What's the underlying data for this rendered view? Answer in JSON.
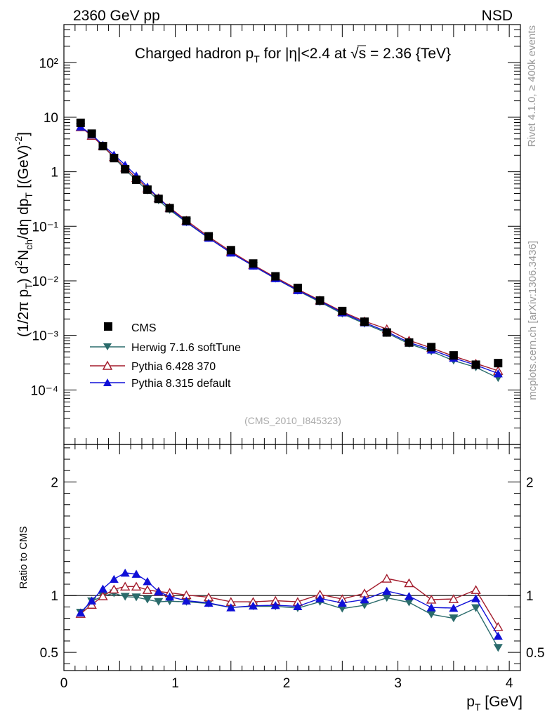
{
  "header": {
    "left_label": "2360 GeV pp",
    "right_label": "NSD"
  },
  "side_labels": {
    "rivet": "Rivet 4.1.0, ≥ 400k events",
    "mcplots": "mcplots.cern.ch [arXiv:1306.3436]"
  },
  "chart_data": [
    {
      "type": "scatter",
      "panel": "main",
      "title_parts": [
        "Charged hadron p",
        "T",
        " for |η|<2.4 at √s = 2.36 {TeV}"
      ],
      "watermark": "(CMS_2010_I845323)",
      "ylabel_parts": [
        "(1/2π p",
        "T",
        ") d",
        "2",
        "N",
        "ch",
        "/dη dp",
        "T",
        " [(GeV)",
        "-2",
        "]"
      ],
      "yscale": "log",
      "ylim": [
        1e-05,
        500
      ],
      "xlim": [
        0,
        4.1
      ],
      "ytick_labels": [
        "10⁻⁴",
        "10⁻³",
        "10⁻²",
        "10⁻¹",
        "1",
        "10",
        "10²"
      ],
      "x": [
        0.15,
        0.25,
        0.35,
        0.45,
        0.55,
        0.65,
        0.75,
        0.85,
        0.95,
        1.1,
        1.3,
        1.5,
        1.7,
        1.9,
        2.1,
        2.3,
        2.5,
        2.7,
        2.9,
        3.1,
        3.3,
        3.5,
        3.7,
        3.9
      ],
      "series": [
        {
          "name": "CMS",
          "style": "data",
          "color": "#000000",
          "values": [
            7.9,
            5.0,
            2.95,
            1.78,
            1.11,
            0.715,
            0.47,
            0.318,
            0.215,
            0.127,
            0.0655,
            0.0365,
            0.0208,
            0.0121,
            0.0074,
            0.00435,
            0.0028,
            0.00178,
            0.00113,
            0.00074,
            0.00061,
            0.00043,
            0.00029,
            0.00031
          ]
        },
        {
          "name": "Herwig 7.1.6 softTune",
          "style": "line-marker",
          "marker": "triangle-down",
          "color": "#2a6b6b",
          "values": [
            6.7,
            4.75,
            2.95,
            1.82,
            1.1,
            0.7,
            0.455,
            0.3,
            0.2,
            0.118,
            0.061,
            0.0327,
            0.0188,
            0.011,
            0.0066,
            0.0041,
            0.0025,
            0.00164,
            0.00111,
            0.0007,
            0.00051,
            0.000345,
            0.00026,
            0.000165
          ]
        },
        {
          "name": "Pythia 6.428 370",
          "style": "line-marker",
          "marker": "triangle-up-open",
          "color": "#a31c2c",
          "values": [
            6.6,
            4.6,
            2.95,
            1.88,
            1.2,
            0.77,
            0.495,
            0.33,
            0.22,
            0.128,
            0.0645,
            0.0345,
            0.0196,
            0.0116,
            0.007,
            0.0044,
            0.00272,
            0.00182,
            0.00131,
            0.00081,
            0.00059,
            0.000415,
            0.000305,
            0.000225
          ]
        },
        {
          "name": "Pythia 8.315 default",
          "style": "line-marker",
          "marker": "triangle-up",
          "color": "#1010d8",
          "values": [
            6.7,
            4.8,
            3.1,
            2.05,
            1.33,
            0.85,
            0.53,
            0.33,
            0.213,
            0.121,
            0.0612,
            0.0327,
            0.0189,
            0.0111,
            0.0067,
            0.00425,
            0.00262,
            0.00172,
            0.00117,
            0.00074,
            0.000545,
            0.000385,
            0.000285,
            0.0002
          ]
        }
      ]
    },
    {
      "type": "line",
      "panel": "ratio",
      "ylabel": "Ratio to CMS",
      "xlabel_parts": [
        "p",
        "T",
        " [GeV]"
      ],
      "ylim": [
        0.34,
        2.33
      ],
      "xlim": [
        0,
        4.1
      ],
      "yticks": [
        0.5,
        1,
        2
      ],
      "ytick_labels": [
        "0.5",
        "1",
        "2"
      ],
      "xticks": [
        0,
        1,
        2,
        3,
        4
      ],
      "xtick_labels": [
        "0",
        "1",
        "2",
        "3",
        "4"
      ],
      "x": [
        0.15,
        0.25,
        0.35,
        0.45,
        0.55,
        0.65,
        0.75,
        0.85,
        0.95,
        1.1,
        1.3,
        1.5,
        1.7,
        1.9,
        2.1,
        2.3,
        2.5,
        2.7,
        2.9,
        3.1,
        3.3,
        3.5,
        3.7,
        3.9
      ],
      "series": [
        {
          "name": "Herwig 7.1.6 softTune",
          "marker": "triangle-down",
          "color": "#2a6b6b",
          "values": [
            0.85,
            0.95,
            0.995,
            1.02,
            0.99,
            0.985,
            0.965,
            0.945,
            0.95,
            0.945,
            0.93,
            0.895,
            0.905,
            0.905,
            0.89,
            0.945,
            0.885,
            0.915,
            0.98,
            0.94,
            0.835,
            0.8,
            0.89,
            0.54
          ]
        },
        {
          "name": "Pythia 6.428 370",
          "marker": "triangle-up-open",
          "color": "#a31c2c",
          "values": [
            0.84,
            0.92,
            0.995,
            1.055,
            1.08,
            1.08,
            1.05,
            1.035,
            1.025,
            1.005,
            0.985,
            0.945,
            0.945,
            0.955,
            0.945,
            1.01,
            0.97,
            1.02,
            1.15,
            1.11,
            0.965,
            0.97,
            1.05,
            0.725
          ]
        },
        {
          "name": "Pythia 8.315 default",
          "marker": "triangle-up",
          "color": "#1010d8",
          "values": [
            0.85,
            0.955,
            1.06,
            1.145,
            1.2,
            1.19,
            1.125,
            1.035,
            0.99,
            0.955,
            0.935,
            0.895,
            0.91,
            0.915,
            0.905,
            0.975,
            0.935,
            0.965,
            1.04,
            0.995,
            0.895,
            0.89,
            0.975,
            0.645
          ]
        }
      ]
    }
  ]
}
